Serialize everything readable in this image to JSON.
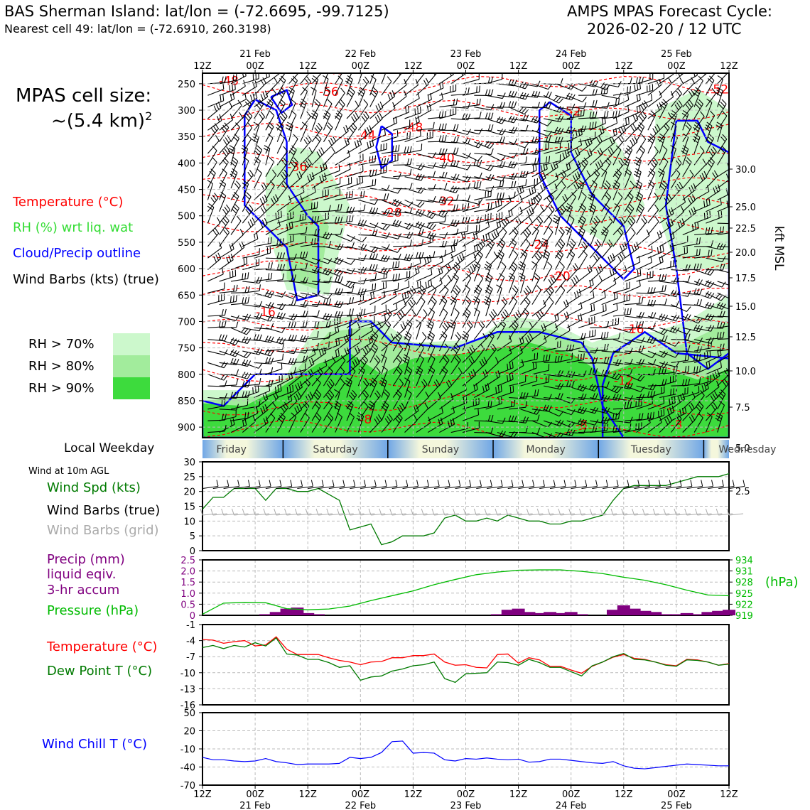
{
  "header": {
    "title_left": "BAS Sherman Island: lat/lon = (-72.6695, -99.7125)",
    "subtitle_left": "Nearest cell 49: lat/lon = (-72.6910, 260.3198)",
    "title_right_1": "AMPS MPAS Forecast Cycle:",
    "title_right_2": "2026-02-20 / 12 UTC"
  },
  "left_panel": {
    "cell_size_1": "MPAS cell size:",
    "cell_size_2": "~(5.4 km)",
    "cell_size_sup": "2",
    "leg_temp": "Temperature (°C)",
    "leg_rh": "RH (%) wrt liq. wat",
    "leg_cloud": "Cloud/Precip outline",
    "leg_wind": "Wind Barbs (kts) (true)",
    "rh70": "RH > 70%",
    "rh80": "RH > 80%",
    "rh90": "RH > 90%",
    "local_weekday": "Local Weekday",
    "wind10m": "Wind at 10m AGL",
    "wind_spd": "Wind Spd (kts)",
    "wind_true": "Wind Barbs (true)",
    "wind_grid": "Wind Barbs (grid)",
    "precip_1": "Precip (mm)",
    "precip_2": "liquid eqiv.",
    "precip_3": "3-hr accum",
    "pressure": "Pressure (hPa)",
    "temp": "Temperature (°C)",
    "dewp": "Dew Point T (°C)",
    "windchill": "Wind Chill T (°C)"
  },
  "colors": {
    "rh70": "#ccf8cc",
    "rh80": "#a2ec9c",
    "rh90": "#3ddb3d",
    "temp": "#ff0000",
    "rh_text": "#32dc32",
    "cloud": "#0000ff",
    "dew": "#007a00",
    "precip": "#800080",
    "pressure": "#00bb00",
    "grid_barb": "#aaaaaa"
  },
  "time_axis": {
    "ticks": [
      "12Z",
      "00Z",
      "12Z",
      "00Z",
      "12Z",
      "00Z",
      "12Z",
      "00Z",
      "12Z",
      "00Z",
      "12Z"
    ],
    "dates": [
      "21 Feb",
      "22 Feb",
      "23 Feb",
      "24 Feb",
      "25 Feb"
    ]
  },
  "weekdays": [
    "Friday",
    "Saturday",
    "Sunday",
    "Monday",
    "Tuesday",
    "Wednesday"
  ],
  "chart_data": [
    {
      "type": "heatmap",
      "title": "Time-height cross section",
      "y_pressure_ticks": [
        "250",
        "300",
        "350",
        "400",
        "450",
        "500",
        "550",
        "600",
        "650",
        "700",
        "750",
        "800",
        "850",
        "900"
      ],
      "y_kft_ticks": [
        "30.0",
        "25.0",
        "22.5",
        "20.0",
        "17.5",
        "15.0",
        "12.5",
        "10.0",
        "7.5",
        "5.0",
        "2.5"
      ],
      "y_right_label": "kft MSL",
      "ylim_hPa": [
        230,
        920
      ],
      "temp_labels": [
        {
          "text": "-48",
          "t": 5,
          "p": 252
        },
        {
          "text": "-48",
          "t": 25,
          "p": 232
        },
        {
          "text": "-48",
          "t": 50,
          "p": 232
        },
        {
          "text": "-56",
          "t": 24,
          "p": 273
        },
        {
          "text": "-52",
          "t": 98,
          "p": 268
        },
        {
          "text": "-52",
          "t": 70,
          "p": 310
        },
        {
          "text": "-48",
          "t": 40,
          "p": 340
        },
        {
          "text": "-44",
          "t": 31,
          "p": 355
        },
        {
          "text": "-40",
          "t": 46,
          "p": 398
        },
        {
          "text": "-36",
          "t": 18,
          "p": 415
        },
        {
          "text": "-32",
          "t": 46,
          "p": 480
        },
        {
          "text": "-28",
          "t": 36,
          "p": 502
        },
        {
          "text": "-24",
          "t": 64,
          "p": 562
        },
        {
          "text": "-20",
          "t": 68,
          "p": 622
        },
        {
          "text": "-16",
          "t": 12,
          "p": 690
        },
        {
          "text": "-16",
          "t": 82,
          "p": 722
        },
        {
          "text": "-12",
          "t": 80,
          "p": 820
        },
        {
          "text": "-8",
          "t": 31,
          "p": 893
        },
        {
          "text": "-8",
          "t": 72,
          "p": 903
        },
        {
          "text": "-8",
          "t": 90,
          "p": 903
        }
      ]
    },
    {
      "type": "line",
      "title": "Wind at 10m AGL",
      "ylim": [
        0,
        30
      ],
      "yticks": [
        "0",
        "5",
        "10",
        "15",
        "20",
        "25",
        "30"
      ],
      "series": [
        {
          "name": "Wind Spd (kts)",
          "x": [
            0,
            2,
            4,
            6,
            8,
            10,
            12,
            14,
            16,
            18,
            20,
            22,
            24,
            26,
            28,
            30,
            32,
            34,
            36,
            38,
            40,
            42,
            44,
            46,
            48,
            50,
            52,
            54,
            56,
            58,
            60,
            62,
            64,
            66,
            68,
            70,
            72,
            74,
            76,
            78,
            80,
            82,
            84,
            86,
            88,
            90,
            92,
            94,
            96,
            98,
            100
          ],
          "values": [
            14,
            18,
            18,
            21,
            21,
            21,
            17,
            21,
            21,
            20,
            20,
            21,
            19,
            17,
            7,
            8,
            9,
            2,
            3,
            5,
            5,
            5,
            6,
            11,
            12,
            10,
            10,
            11,
            10,
            12,
            11,
            10,
            10,
            9,
            9,
            10,
            10,
            11,
            12,
            17,
            21,
            22,
            22,
            22,
            22,
            23,
            24,
            25,
            25,
            25,
            26
          ]
        }
      ]
    },
    {
      "type": "bar",
      "title": "Precip (mm) 3-hr accum",
      "ylim": [
        0,
        2.5
      ],
      "yticks": [
        "0",
        "0.5",
        "1.0",
        "1.5",
        "2.0",
        "2.5"
      ],
      "x": [
        12,
        14,
        16,
        18,
        20,
        22,
        56,
        58,
        60,
        62,
        64,
        66,
        68,
        70,
        72,
        78,
        80,
        82,
        84,
        86,
        88,
        90,
        92,
        94,
        96,
        98,
        100
      ],
      "values": [
        0.05,
        0.15,
        0.3,
        0.35,
        0.1,
        0.05,
        0.05,
        0.25,
        0.3,
        0.15,
        0.1,
        0.15,
        0.1,
        0.15,
        0.05,
        0.25,
        0.45,
        0.3,
        0.2,
        0.15,
        0.05,
        0.05,
        0.1,
        0.05,
        0.15,
        0.2,
        0.25
      ],
      "pressure_ylim": [
        919,
        934
      ],
      "pressure_yticks": [
        "934",
        "931",
        "928",
        "925",
        "922",
        "919"
      ],
      "pressure_label": "(hPa)",
      "pressure_x": [
        0,
        4,
        8,
        12,
        16,
        20,
        24,
        28,
        32,
        36,
        40,
        44,
        48,
        52,
        56,
        60,
        64,
        68,
        72,
        76,
        80,
        84,
        88,
        92,
        96,
        100
      ],
      "pressure_values": [
        919.3,
        922.3,
        922.5,
        922.4,
        920.8,
        920.5,
        920.7,
        921.5,
        923,
        924.3,
        925.6,
        927.3,
        928.7,
        930,
        930.7,
        931.2,
        931.3,
        931.3,
        930.9,
        930.3,
        929.3,
        928.5,
        927.3,
        925.8,
        924.5,
        924.3
      ]
    },
    {
      "type": "line",
      "title": "Temperature and Dew Point",
      "ylim": [
        -16,
        -1
      ],
      "yticks": [
        "-1",
        "-4",
        "-7",
        "-10",
        "-13",
        "-16"
      ],
      "x": [
        0,
        2,
        4,
        6,
        8,
        10,
        12,
        14,
        16,
        18,
        20,
        22,
        24,
        26,
        28,
        30,
        32,
        34,
        36,
        38,
        40,
        42,
        44,
        46,
        48,
        50,
        52,
        54,
        56,
        58,
        60,
        62,
        64,
        66,
        68,
        70,
        72,
        74,
        76,
        78,
        80,
        82,
        84,
        86,
        88,
        90,
        92,
        94,
        96,
        98,
        100
      ],
      "series": [
        {
          "name": "Temperature (°C)",
          "values": [
            -3.8,
            -3.9,
            -4.5,
            -4.2,
            -4.0,
            -5.0,
            -4.8,
            -3.3,
            -5.6,
            -6.6,
            -6.6,
            -6.6,
            -7.2,
            -7.7,
            -8.0,
            -8.5,
            -8.0,
            -7.9,
            -7.2,
            -7.2,
            -6.8,
            -6.8,
            -6.5,
            -8.0,
            -8.6,
            -8.5,
            -9.0,
            -9.1,
            -6.6,
            -6.5,
            -8.2,
            -7.2,
            -7.6,
            -8.8,
            -8.8,
            -9.5,
            -10.1,
            -8.8,
            -8.0,
            -7.1,
            -6.6,
            -7.3,
            -7.5,
            -8.0,
            -8.5,
            -8.7,
            -7.5,
            -7.6,
            -8.0,
            -8.6,
            -8.3
          ]
        },
        {
          "name": "Dew Point T (°C)",
          "values": [
            -5.3,
            -4.9,
            -5.5,
            -4.9,
            -5.2,
            -4.4,
            -5.0,
            -3.5,
            -6.5,
            -6.7,
            -7.5,
            -7.5,
            -8.1,
            -9.0,
            -8.7,
            -11.4,
            -10.8,
            -10.6,
            -9.7,
            -9.3,
            -8.7,
            -8.5,
            -8.0,
            -11.1,
            -11.8,
            -10.2,
            -10.1,
            -10.0,
            -8.0,
            -8.1,
            -8.6,
            -7.5,
            -8.1,
            -9.0,
            -9.0,
            -9.8,
            -10.6,
            -8.7,
            -8.0,
            -7.0,
            -6.4,
            -7.5,
            -7.6,
            -8.0,
            -8.6,
            -8.8,
            -7.6,
            -7.7,
            -8.0,
            -8.6,
            -8.4
          ]
        }
      ]
    },
    {
      "type": "line",
      "title": "Wind Chill T (°C)",
      "ylim": [
        -70,
        50
      ],
      "yticks": [
        "50",
        "20",
        "-10",
        "-40",
        "-70"
      ],
      "x": [
        0,
        2,
        4,
        6,
        8,
        10,
        12,
        14,
        16,
        18,
        20,
        22,
        24,
        26,
        28,
        30,
        32,
        34,
        36,
        38,
        40,
        42,
        44,
        46,
        48,
        50,
        52,
        54,
        56,
        58,
        60,
        62,
        64,
        66,
        68,
        70,
        72,
        74,
        76,
        78,
        80,
        82,
        84,
        86,
        88,
        90,
        92,
        94,
        96,
        98,
        100
      ],
      "series": [
        {
          "name": "Wind Chill T (°C)",
          "values": [
            -24,
            -28,
            -28,
            -30,
            -31,
            -30,
            -26,
            -31,
            -33,
            -36,
            -35,
            -35,
            -35,
            -34,
            -24,
            -26,
            -24,
            -16,
            2,
            3,
            -17,
            -16,
            -17,
            -28,
            -30,
            -26,
            -27,
            -25,
            -27,
            -28,
            -27,
            -32,
            -31,
            -27,
            -27,
            -29,
            -31,
            -33,
            -34,
            -31,
            -38,
            -42,
            -43,
            -41,
            -39,
            -37,
            -35,
            -36,
            -37,
            -38,
            -38
          ]
        }
      ]
    }
  ]
}
